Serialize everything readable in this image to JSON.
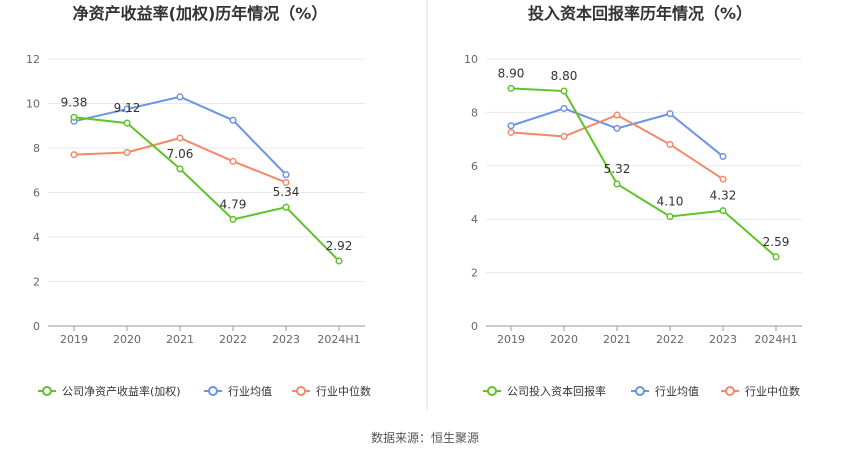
{
  "footer": {
    "source": "数据来源：恒生聚源"
  },
  "colors": {
    "company": "#5ec229",
    "industry_avg": "#6c93e6",
    "industry_median": "#f28a6a",
    "grid": "#e8e8e8",
    "divider": "#dddddd"
  },
  "chart_data": [
    {
      "type": "line",
      "title": "净资产收益率(加权)历年情况（%）",
      "categories": [
        "2019",
        "2020",
        "2021",
        "2022",
        "2023",
        "2024H1"
      ],
      "ylim": [
        0,
        12
      ],
      "yticks": [
        "0",
        "2",
        "4",
        "6",
        "8",
        "10",
        "12"
      ],
      "grid": true,
      "legend_position": "bottom",
      "series": [
        {
          "name": "公司净资产收益率(加权)",
          "color": "#5ec229",
          "values": [
            9.38,
            9.12,
            7.06,
            4.79,
            5.34,
            2.92
          ],
          "labels": [
            "9.38",
            "9.12",
            "7.06",
            "4.79",
            "5.34",
            "2.92"
          ]
        },
        {
          "name": "行业均值",
          "color": "#6c93e6",
          "values": [
            9.2,
            9.75,
            10.3,
            9.25,
            6.8,
            null
          ]
        },
        {
          "name": "行业中位数",
          "color": "#f28a6a",
          "values": [
            7.7,
            7.8,
            8.45,
            7.4,
            6.45,
            null
          ]
        }
      ]
    },
    {
      "type": "line",
      "title": "投入资本回报率历年情况（%）",
      "categories": [
        "2019",
        "2020",
        "2021",
        "2022",
        "2023",
        "2024H1"
      ],
      "ylim": [
        0,
        10
      ],
      "yticks": [
        "0",
        "2",
        "4",
        "6",
        "8",
        "10"
      ],
      "grid": true,
      "legend_position": "bottom",
      "series": [
        {
          "name": "公司投入资本回报率",
          "color": "#5ec229",
          "values": [
            8.9,
            8.8,
            5.32,
            4.1,
            4.32,
            2.59
          ],
          "labels": [
            "8.90",
            "8.80",
            "5.32",
            "4.10",
            "4.32",
            "2.59"
          ]
        },
        {
          "name": "行业均值",
          "color": "#6c93e6",
          "values": [
            7.5,
            8.15,
            7.4,
            7.95,
            6.35,
            null
          ]
        },
        {
          "name": "行业中位数",
          "color": "#f28a6a",
          "values": [
            7.25,
            7.1,
            7.9,
            6.8,
            5.5,
            null
          ]
        }
      ]
    }
  ]
}
